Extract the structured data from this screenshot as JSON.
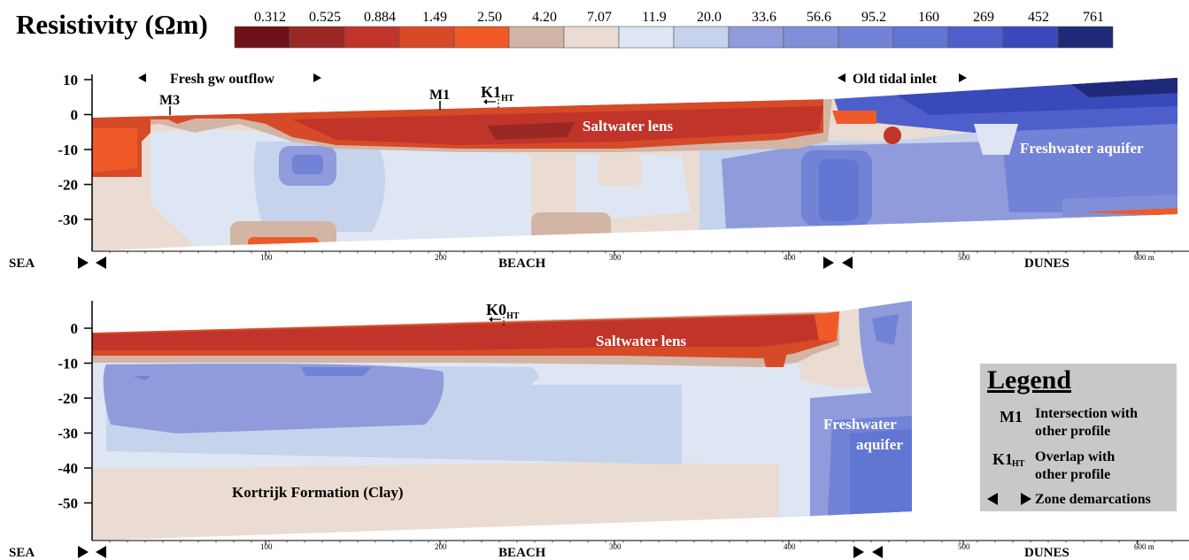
{
  "title": "Resistivity (Ωm)",
  "colorbar": {
    "ticks": [
      "0.312",
      "0.525",
      "0.884",
      "1.49",
      "2.50",
      "4.20",
      "7.07",
      "11.9",
      "20.0",
      "33.6",
      "56.6",
      "95.2",
      "160",
      "269",
      "452",
      "761"
    ],
    "colors": [
      "#6f1217",
      "#992824",
      "#c0342a",
      "#d64a27",
      "#ef5a28",
      "#d3b5a5",
      "#eadcd2",
      "#dfe6f3",
      "#c5d3ec",
      "#8f9bdb",
      "#8090d8",
      "#7282d6",
      "#6175d3",
      "#4e5fcc",
      "#3a49ba",
      "#1e2a78"
    ]
  },
  "profile1": {
    "y_ticks": [
      "10",
      "0",
      "-10",
      "-20",
      "-30"
    ],
    "zone_labels": {
      "outflow": "Fresh gw outflow",
      "inlet": "Old tidal inlet"
    },
    "markers": {
      "m3": "M3",
      "m1": "M1",
      "k1": "K1",
      "k1_sub": "HT"
    },
    "annotations": {
      "saltwater": "Saltwater lens",
      "freshwater": "Freshwater aquifer"
    },
    "x_ticks": [
      "100",
      "200",
      "300",
      "400",
      "500",
      "600 m"
    ],
    "zones": {
      "sea": "SEA",
      "beach": "BEACH",
      "dunes": "DUNES"
    }
  },
  "profile2": {
    "y_ticks": [
      "0",
      "-10",
      "-20",
      "-30",
      "-40",
      "-50"
    ],
    "markers": {
      "k0": "K0",
      "k0_sub": "HT"
    },
    "annotations": {
      "saltwater": "Saltwater lens",
      "freshwater1": "Freshwater",
      "freshwater2": "aquifer",
      "clay": "Kortrijk Formation (Clay)"
    },
    "x_ticks": [
      "100",
      "200",
      "300",
      "400",
      "500",
      "600 m"
    ],
    "zones": {
      "sea": "SEA",
      "beach": "BEACH",
      "dunes": "DUNES"
    }
  },
  "legend": {
    "title": "Legend",
    "m_symbol": "M1",
    "m_text1": "Intersection with",
    "m_text2": "other profile",
    "k_symbol": "K1",
    "k_sub": "HT",
    "k_text1": "Overlap with",
    "k_text2": "other profile",
    "zone_text": "Zone demarcations"
  }
}
